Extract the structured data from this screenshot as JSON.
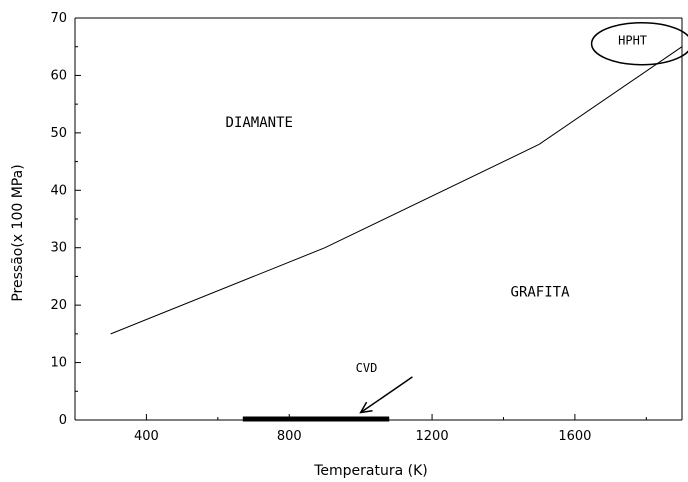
{
  "chart_data": {
    "type": "line",
    "title": "",
    "xlabel": "Temperatura (K)",
    "ylabel": "Pressão(x 100 MPa)",
    "xlim": [
      200,
      1900
    ],
    "ylim": [
      0,
      70
    ],
    "x_ticks": [
      400,
      800,
      1200,
      1600
    ],
    "y_ticks": [
      0,
      10,
      20,
      30,
      40,
      50,
      60,
      70
    ],
    "grid": false,
    "series": [
      {
        "x": [
          300,
          900,
          1500,
          1900
        ],
        "y": [
          15,
          30,
          48,
          65
        ]
      }
    ],
    "regions": {
      "upper": {
        "text": "DIAMANTE",
        "x": 800,
        "y": 51
      },
      "lower": {
        "text": "GRAFITA",
        "x": 1620,
        "y": 22
      }
    },
    "annotations": {
      "hpht": {
        "text": "HPHT",
        "x": 1770,
        "y": 65
      },
      "cvd": {
        "text": "CVD",
        "x": 1050,
        "y": 8,
        "arrow_from": [
          1145,
          7.5
        ],
        "arrow_to": [
          1000,
          1.3
        ]
      }
    },
    "cvd_range": {
      "x": [
        670,
        1080
      ],
      "y": 0
    }
  }
}
